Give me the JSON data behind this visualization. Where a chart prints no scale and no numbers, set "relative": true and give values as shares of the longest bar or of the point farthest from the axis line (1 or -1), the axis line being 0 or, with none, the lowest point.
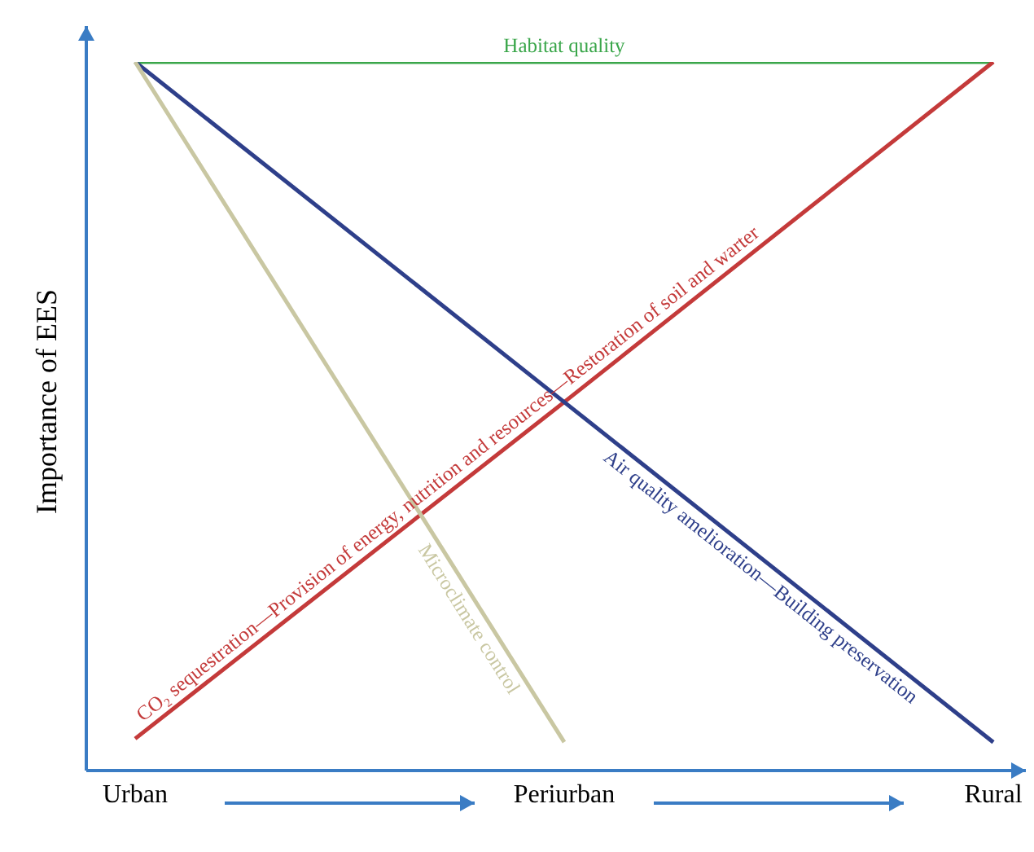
{
  "chart_data": {
    "type": "line",
    "relative": true,
    "ylabel": "Importance of EES",
    "categories": [
      "Urban",
      "Periurban",
      "Rural"
    ],
    "series": [
      {
        "name": "Habitat quality",
        "color": "#3aa64a",
        "values": [
          1,
          1,
          1
        ]
      },
      {
        "name": "CO₂ sequestration—Provision of energy, nutrition and resources—Restoration of soil and warter",
        "color": "#c43a3a",
        "values": [
          0.045,
          0.52,
          1
        ]
      },
      {
        "name": "Air quality amelioration—Building preservation",
        "color": "#2e3f8a",
        "values": [
          1,
          0.52,
          0.04
        ]
      },
      {
        "name": "Microclimate control",
        "color": "#c9c7a2",
        "values": [
          1,
          0.04,
          null
        ]
      }
    ],
    "legend": false,
    "grid": false,
    "marker": "none",
    "line_style": "solid"
  }
}
